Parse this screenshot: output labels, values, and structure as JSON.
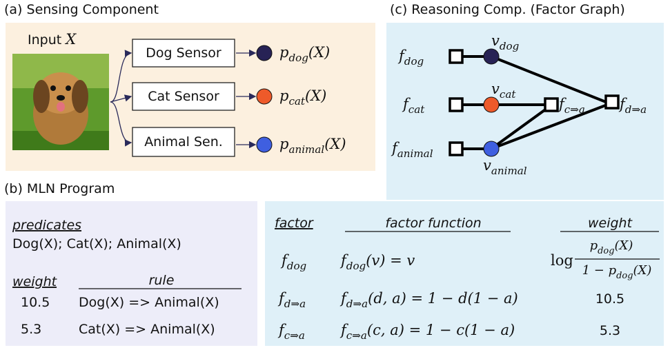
{
  "sensing": {
    "title": "(a) Sensing Component",
    "input_label": "Input",
    "input_var": "X",
    "sensors": [
      "Dog Sensor",
      "Cat Sensor",
      "Animal Sen."
    ],
    "outputs": [
      {
        "base": "p",
        "sub": "dog",
        "rest": "(X)"
      },
      {
        "base": "p",
        "sub": "cat",
        "rest": "(X)"
      },
      {
        "base": "p",
        "sub": "animal",
        "rest": "(X)"
      }
    ]
  },
  "reasoning": {
    "title": "(c) Reasoning Comp. (Factor Graph)",
    "factors": [
      {
        "base": "f",
        "sub": "dog"
      },
      {
        "base": "f",
        "sub": "cat"
      },
      {
        "base": "f",
        "sub": "animal"
      }
    ],
    "variables": [
      {
        "base": "v",
        "sub": "dog"
      },
      {
        "base": "v",
        "sub": "cat"
      },
      {
        "base": "v",
        "sub": "animal"
      }
    ],
    "rule_factors": [
      {
        "base": "f",
        "sub": "c⇒a"
      },
      {
        "base": "f",
        "sub": "d⇒a"
      }
    ]
  },
  "mln": {
    "title": "(b) MLN Program",
    "predicates_label": "predicates",
    "predicates": "Dog(X); Cat(X); Animal(X)",
    "weight_label": "weight",
    "rule_label": "rule",
    "rules": [
      {
        "weight": 10.5,
        "rule": "Dog(X) => Animal(X)"
      },
      {
        "weight": 5.3,
        "rule": "Cat(X) => Animal(X)"
      }
    ]
  },
  "factor_table": {
    "headers": [
      "factor",
      "factor function",
      "weight"
    ],
    "rows": [
      {
        "factor": {
          "base": "f",
          "sub": "dog"
        },
        "function": {
          "base": "f",
          "sub": "dog",
          "rest": "(v) = v"
        },
        "weight": {
          "log": "log",
          "numerator": {
            "base": "p",
            "sub": "dog",
            "rest": "(X)"
          },
          "denominator": {
            "pre": "1 − ",
            "base": "p",
            "sub": "dog",
            "rest": "(X)"
          }
        }
      },
      {
        "factor": {
          "base": "f",
          "sub": "d⇒a"
        },
        "function": {
          "base": "f",
          "sub": "d⇒a",
          "rest": "(d, a) = 1 − d(1 − a)"
        },
        "weight": 10.5
      },
      {
        "factor": {
          "base": "f",
          "sub": "c⇒a"
        },
        "function": {
          "base": "f",
          "sub": "c⇒a",
          "rest": "(c, a) = 1 − c(1 − a)"
        },
        "weight": 5.3
      }
    ]
  }
}
